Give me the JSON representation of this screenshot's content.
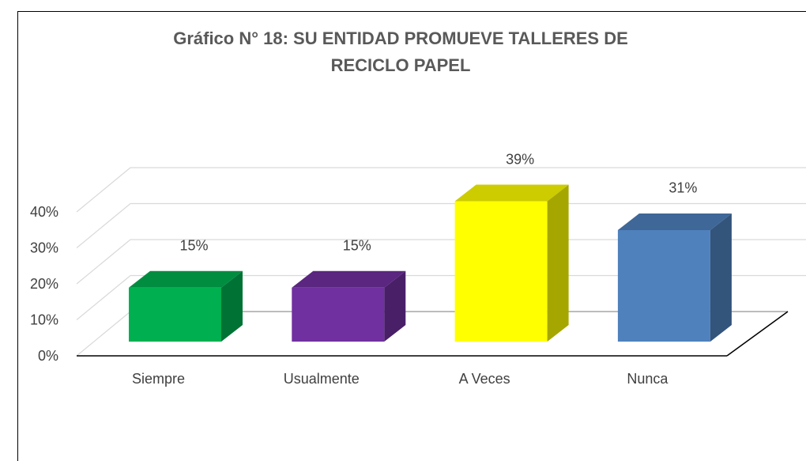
{
  "chart_data": {
    "type": "bar3d",
    "title_lines": [
      "Gráfico N° 18: SU ENTIDAD PROMUEVE TALLERES DE",
      "RECICLO PAPEL"
    ],
    "categories": [
      "Siempre",
      "Usualmente",
      "A Veces",
      "Nunca"
    ],
    "values": [
      15,
      15,
      39,
      31
    ],
    "value_labels": [
      "15%",
      "15%",
      "39%",
      "31%"
    ],
    "colors": [
      "#00b050",
      "#7030a0",
      "#ffff00",
      "#4f81bd"
    ],
    "ylim": [
      0,
      40
    ],
    "yticks": [
      {
        "value": 0,
        "label": "0%"
      },
      {
        "value": 10,
        "label": "10%"
      },
      {
        "value": 20,
        "label": "20%"
      },
      {
        "value": 30,
        "label": "30%"
      },
      {
        "value": 40,
        "label": "40%"
      }
    ],
    "grid": true
  }
}
